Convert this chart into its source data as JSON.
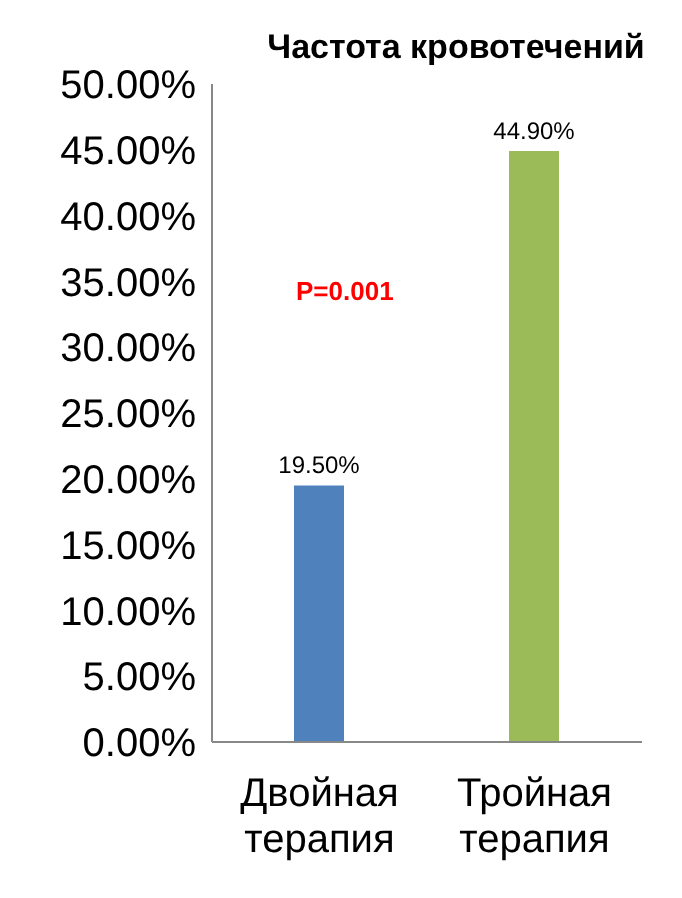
{
  "chart_data": {
    "type": "bar",
    "title": "Частота кровотечений",
    "categories": [
      "Двойная терапия",
      "Тройная терапия"
    ],
    "values": [
      19.5,
      44.9
    ],
    "colors": [
      "#4f81bd",
      "#9bbb59"
    ],
    "value_labels": [
      "19.50%",
      "44.90%"
    ],
    "annotations": [
      "P=0.001"
    ],
    "ylim": [
      0,
      50
    ],
    "yticks": [
      {
        "value": 0,
        "label": "0.00%"
      },
      {
        "value": 5,
        "label": "5.00%"
      },
      {
        "value": 10,
        "label": "10.00%"
      },
      {
        "value": 15,
        "label": "15.00%"
      },
      {
        "value": 20,
        "label": "20.00%"
      },
      {
        "value": 25,
        "label": "25.00%"
      },
      {
        "value": 30,
        "label": "30.00%"
      },
      {
        "value": 35,
        "label": "35.00%"
      },
      {
        "value": 40,
        "label": "40.00%"
      },
      {
        "value": 45,
        "label": "45.00%"
      },
      {
        "value": 50,
        "label": "50.00%"
      }
    ],
    "grid": false
  }
}
